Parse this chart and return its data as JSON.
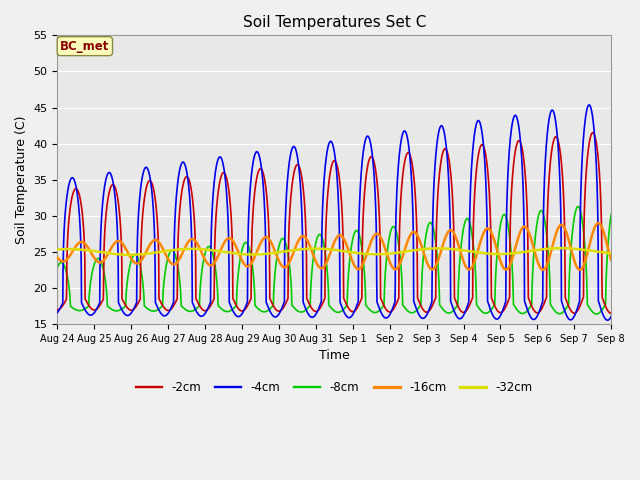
{
  "title": "Soil Temperatures Set C",
  "xlabel": "Time",
  "ylabel": "Soil Temperature (C)",
  "ylim": [
    15,
    55
  ],
  "yticks": [
    15,
    20,
    25,
    30,
    35,
    40,
    45,
    50,
    55
  ],
  "annotation": "BC_met",
  "lines": {
    "-2cm": {
      "color": "#cc0000",
      "lw": 1.2
    },
    "-4cm": {
      "color": "#0000ee",
      "lw": 1.2
    },
    "-8cm": {
      "color": "#00cc00",
      "lw": 1.2
    },
    "-16cm": {
      "color": "#ff8800",
      "lw": 1.8
    },
    "-32cm": {
      "color": "#dddd00",
      "lw": 1.8
    }
  },
  "tick_labels": [
    "Aug 24",
    "Aug 25",
    "Aug 26",
    "Aug 27",
    "Aug 28",
    "Aug 29",
    "Aug 30",
    "Aug 31",
    "Sep 1",
    "Sep 2",
    "Sep 3",
    "Sep 4",
    "Sep 5",
    "Sep 6",
    "Sep 7",
    "Sep 8"
  ],
  "fig_facecolor": "#f0f0f0",
  "ax_facecolor": "#e8e8e8",
  "grid_color": "#ffffff",
  "figsize": [
    6.4,
    4.8
  ],
  "dpi": 100
}
